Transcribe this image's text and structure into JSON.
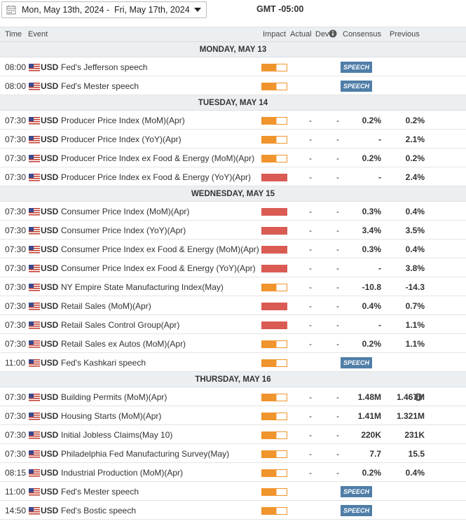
{
  "header": {
    "date_range": "Mon, May 13th, 2024 -  Fri, May 17th, 2024",
    "timezone": "GMT -05:00"
  },
  "columns": {
    "time": "Time",
    "event": "Event",
    "impact": "Impact",
    "actual": "Actual",
    "dev": "Dev",
    "consensus": "Consensus",
    "previous": "Previous"
  },
  "colors": {
    "low_impact": "#f0942d",
    "high_impact": "#d95b54",
    "speech_badge": "#4f7ea8"
  },
  "icons": {
    "date_picker": "calendar-icon",
    "dropdown": "chevron-down-icon",
    "dev_info": "info-icon",
    "flag": "us-flag-icon"
  },
  "days": [
    {
      "label": "MONDAY, MAY 13",
      "events": [
        {
          "time": "08:00",
          "currency": "USD",
          "event": "Fed's Jefferson speech",
          "impact": "low",
          "badge": "SPEECH",
          "actual": "",
          "dev": "",
          "consensus": "",
          "previous": ""
        },
        {
          "time": "08:00",
          "currency": "USD",
          "event": "Fed's Mester speech",
          "impact": "low",
          "badge": "SPEECH",
          "actual": "",
          "dev": "",
          "consensus": "",
          "previous": ""
        }
      ]
    },
    {
      "label": "TUESDAY, MAY 14",
      "events": [
        {
          "time": "07:30",
          "currency": "USD",
          "event": "Producer Price Index (MoM)(Apr)",
          "impact": "low",
          "actual": "-",
          "dev": "-",
          "consensus": "0.2%",
          "previous": "0.2%"
        },
        {
          "time": "07:30",
          "currency": "USD",
          "event": "Producer Price Index (YoY)(Apr)",
          "impact": "low",
          "actual": "-",
          "dev": "-",
          "consensus": "-",
          "previous": "2.1%"
        },
        {
          "time": "07:30",
          "currency": "USD",
          "event": "Producer Price Index ex Food & Energy (MoM)(Apr)",
          "impact": "low",
          "actual": "-",
          "dev": "-",
          "consensus": "0.2%",
          "previous": "0.2%"
        },
        {
          "time": "07:30",
          "currency": "USD",
          "event": "Producer Price Index ex Food & Energy (YoY)(Apr)",
          "impact": "high",
          "actual": "-",
          "dev": "-",
          "consensus": "-",
          "previous": "2.4%"
        }
      ]
    },
    {
      "label": "WEDNESDAY, MAY 15",
      "events": [
        {
          "time": "07:30",
          "currency": "USD",
          "event": "Consumer Price Index (MoM)(Apr)",
          "impact": "high",
          "actual": "-",
          "dev": "-",
          "consensus": "0.3%",
          "previous": "0.4%"
        },
        {
          "time": "07:30",
          "currency": "USD",
          "event": "Consumer Price Index (YoY)(Apr)",
          "impact": "high",
          "actual": "-",
          "dev": "-",
          "consensus": "3.4%",
          "previous": "3.5%"
        },
        {
          "time": "07:30",
          "currency": "USD",
          "event": "Consumer Price Index ex Food & Energy (MoM)(Apr)",
          "impact": "high",
          "actual": "-",
          "dev": "-",
          "consensus": "0.3%",
          "previous": "0.4%"
        },
        {
          "time": "07:30",
          "currency": "USD",
          "event": "Consumer Price Index ex Food & Energy (YoY)(Apr)",
          "impact": "high",
          "actual": "-",
          "dev": "-",
          "consensus": "-",
          "previous": "3.8%"
        },
        {
          "time": "07:30",
          "currency": "USD",
          "event": "NY Empire State Manufacturing Index(May)",
          "impact": "low",
          "actual": "-",
          "dev": "-",
          "consensus": "-10.8",
          "previous": "-14.3"
        },
        {
          "time": "07:30",
          "currency": "USD",
          "event": "Retail Sales (MoM)(Apr)",
          "impact": "high",
          "actual": "-",
          "dev": "-",
          "consensus": "0.4%",
          "previous": "0.7%"
        },
        {
          "time": "07:30",
          "currency": "USD",
          "event": "Retail Sales Control Group(Apr)",
          "impact": "high",
          "actual": "-",
          "dev": "-",
          "consensus": "-",
          "previous": "1.1%"
        },
        {
          "time": "07:30",
          "currency": "USD",
          "event": "Retail Sales ex Autos (MoM)(Apr)",
          "impact": "low",
          "actual": "-",
          "dev": "-",
          "consensus": "0.2%",
          "previous": "1.1%"
        },
        {
          "time": "11:00",
          "currency": "USD",
          "event": "Fed's Kashkari speech",
          "impact": "low",
          "badge": "SPEECH",
          "actual": "",
          "dev": "",
          "consensus": "",
          "previous": ""
        }
      ]
    },
    {
      "label": "THURSDAY, MAY 16",
      "events": [
        {
          "time": "07:30",
          "currency": "USD",
          "event": "Building Permits (MoM)(Apr)",
          "impact": "low",
          "actual": "-",
          "dev": "-",
          "consensus": "1.48M",
          "previous": "1.467M",
          "info": true
        },
        {
          "time": "07:30",
          "currency": "USD",
          "event": "Housing Starts (MoM)(Apr)",
          "impact": "low",
          "actual": "-",
          "dev": "-",
          "consensus": "1.41M",
          "previous": "1.321M"
        },
        {
          "time": "07:30",
          "currency": "USD",
          "event": "Initial Jobless Claims(May 10)",
          "impact": "low",
          "actual": "-",
          "dev": "-",
          "consensus": "220K",
          "previous": "231K"
        },
        {
          "time": "07:30",
          "currency": "USD",
          "event": "Philadelphia Fed Manufacturing Survey(May)",
          "impact": "low",
          "actual": "-",
          "dev": "-",
          "consensus": "7.7",
          "previous": "15.5"
        },
        {
          "time": "08:15",
          "currency": "USD",
          "event": "Industrial Production (MoM)(Apr)",
          "impact": "low",
          "actual": "-",
          "dev": "-",
          "consensus": "0.2%",
          "previous": "0.4%"
        },
        {
          "time": "11:00",
          "currency": "USD",
          "event": "Fed's Mester speech",
          "impact": "low",
          "badge": "SPEECH",
          "actual": "",
          "dev": "",
          "consensus": "",
          "previous": ""
        },
        {
          "time": "14:50",
          "currency": "USD",
          "event": "Fed's Bostic speech",
          "impact": "low",
          "badge": "SPEECH",
          "actual": "",
          "dev": "",
          "consensus": "",
          "previous": ""
        }
      ]
    }
  ]
}
